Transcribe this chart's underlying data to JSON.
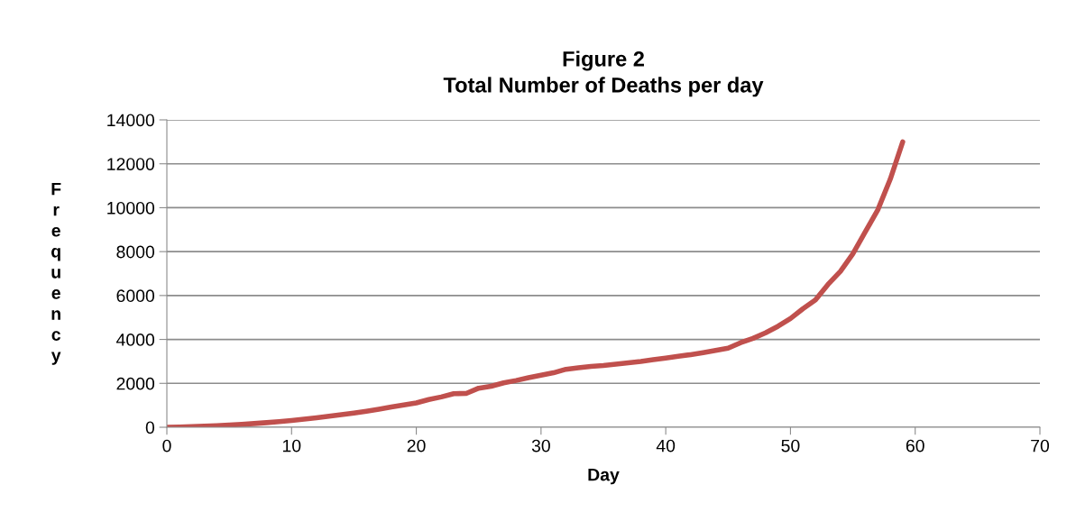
{
  "chart_data": {
    "type": "line",
    "title": "Figure 2\nTotal Number of Deaths per day",
    "xlabel": "Day",
    "ylabel": "Frequency",
    "x": [
      0,
      1,
      2,
      3,
      4,
      5,
      6,
      7,
      8,
      9,
      10,
      11,
      12,
      13,
      14,
      15,
      16,
      17,
      18,
      19,
      20,
      21,
      22,
      23,
      24,
      25,
      26,
      27,
      28,
      29,
      30,
      31,
      32,
      33,
      34,
      35,
      36,
      37,
      38,
      39,
      40,
      41,
      42,
      43,
      44,
      45,
      46,
      47,
      48,
      49,
      50,
      51,
      52,
      53,
      54,
      55,
      56,
      57,
      58,
      59
    ],
    "series": [
      {
        "color": "#c0504d",
        "values": [
          0,
          10,
          30,
          50,
          70,
          100,
          130,
          170,
          210,
          260,
          310,
          370,
          430,
          500,
          570,
          650,
          730,
          820,
          920,
          1020,
          1110,
          1260,
          1380,
          1530,
          1540,
          1780,
          1870,
          2020,
          2130,
          2260,
          2370,
          2480,
          2640,
          2710,
          2770,
          2810,
          2870,
          2940,
          3000,
          3080,
          3150,
          3230,
          3310,
          3400,
          3500,
          3600,
          3850,
          4050,
          4300,
          4600,
          4950,
          5400,
          5800,
          6500,
          7100,
          7900,
          8900,
          9900,
          11300,
          13000
        ]
      }
    ],
    "xlim": [
      0,
      70
    ],
    "xticks": [
      0,
      10,
      20,
      30,
      40,
      50,
      60,
      70
    ],
    "ylim": [
      0,
      14000
    ],
    "yticks": [
      0,
      2000,
      4000,
      6000,
      8000,
      10000,
      12000,
      14000
    ],
    "grid": "y",
    "legend": false,
    "marker": "none",
    "line_style": "solid"
  }
}
